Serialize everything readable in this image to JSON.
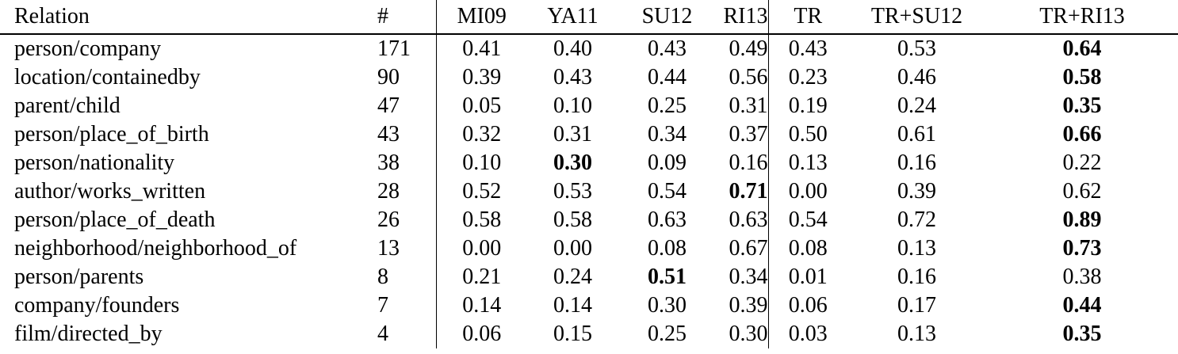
{
  "table": {
    "columns": [
      "Relation",
      "#",
      "MI09",
      "YA11",
      "SU12",
      "RI13",
      "TR",
      "TR+SU12",
      "TR+RI13"
    ],
    "rows": [
      {
        "relation": "person/company",
        "count": "171",
        "mi09": "0.41",
        "ya11": "0.40",
        "su12": "0.43",
        "ri13": "0.49",
        "tr": "0.43",
        "tr_su12": "0.53",
        "tr_ri13": "0.64",
        "bold": "tr_ri13"
      },
      {
        "relation": "location/containedby",
        "count": "90",
        "mi09": "0.39",
        "ya11": "0.43",
        "su12": "0.44",
        "ri13": "0.56",
        "tr": "0.23",
        "tr_su12": "0.46",
        "tr_ri13": "0.58",
        "bold": "tr_ri13"
      },
      {
        "relation": "parent/child",
        "count": "47",
        "mi09": "0.05",
        "ya11": "0.10",
        "su12": "0.25",
        "ri13": "0.31",
        "tr": "0.19",
        "tr_su12": "0.24",
        "tr_ri13": "0.35",
        "bold": "tr_ri13"
      },
      {
        "relation": "person/place_of_birth",
        "count": "43",
        "mi09": "0.32",
        "ya11": "0.31",
        "su12": "0.34",
        "ri13": "0.37",
        "tr": "0.50",
        "tr_su12": "0.61",
        "tr_ri13": "0.66",
        "bold": "tr_ri13"
      },
      {
        "relation": "person/nationality",
        "count": "38",
        "mi09": "0.10",
        "ya11": "0.30",
        "su12": "0.09",
        "ri13": "0.16",
        "tr": "0.13",
        "tr_su12": "0.16",
        "tr_ri13": "0.22",
        "bold": "ya11"
      },
      {
        "relation": "author/works_written",
        "count": "28",
        "mi09": "0.52",
        "ya11": "0.53",
        "su12": "0.54",
        "ri13": "0.71",
        "tr": "0.00",
        "tr_su12": "0.39",
        "tr_ri13": "0.62",
        "bold": "ri13"
      },
      {
        "relation": "person/place_of_death",
        "count": "26",
        "mi09": "0.58",
        "ya11": "0.58",
        "su12": "0.63",
        "ri13": "0.63",
        "tr": "0.54",
        "tr_su12": "0.72",
        "tr_ri13": "0.89",
        "bold": "tr_ri13"
      },
      {
        "relation": "neighborhood/neighborhood_of",
        "count": "13",
        "mi09": "0.00",
        "ya11": "0.00",
        "su12": "0.08",
        "ri13": "0.67",
        "tr": "0.08",
        "tr_su12": "0.13",
        "tr_ri13": "0.73",
        "bold": "tr_ri13"
      },
      {
        "relation": "person/parents",
        "count": "8",
        "mi09": "0.21",
        "ya11": "0.24",
        "su12": "0.51",
        "ri13": "0.34",
        "tr": "0.01",
        "tr_su12": "0.16",
        "tr_ri13": "0.38",
        "bold": "su12"
      },
      {
        "relation": "company/founders",
        "count": "7",
        "mi09": "0.14",
        "ya11": "0.14",
        "su12": "0.30",
        "ri13": "0.39",
        "tr": "0.06",
        "tr_su12": "0.17",
        "tr_ri13": "0.44",
        "bold": "tr_ri13"
      },
      {
        "relation": "film/directed_by",
        "count": "4",
        "mi09": "0.06",
        "ya11": "0.15",
        "su12": "0.25",
        "ri13": "0.30",
        "tr": "0.03",
        "tr_su12": "0.13",
        "tr_ri13": "0.35",
        "bold": "tr_ri13"
      }
    ]
  }
}
